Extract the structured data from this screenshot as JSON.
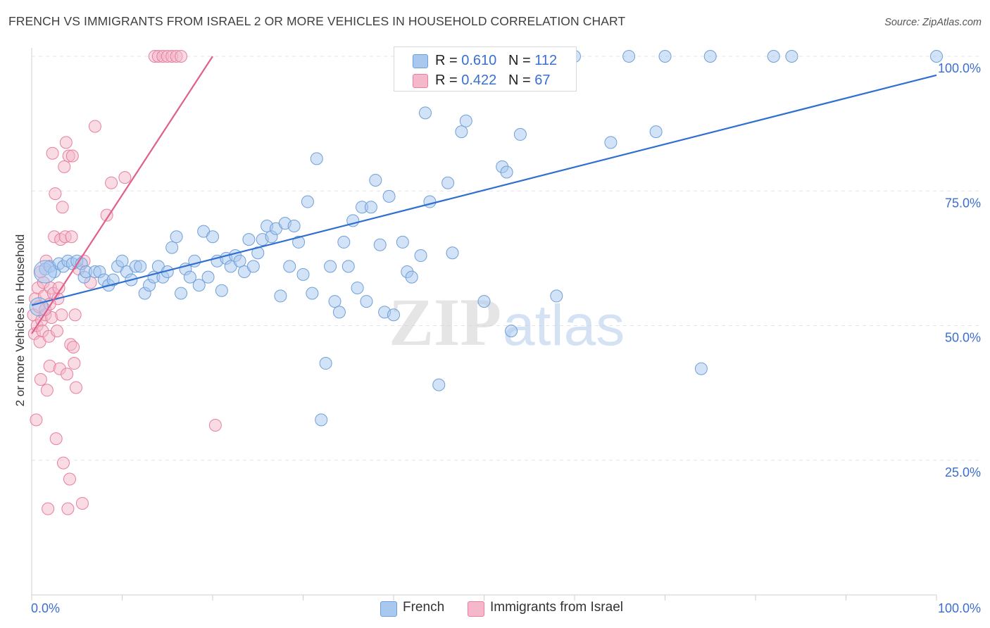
{
  "title": "FRENCH VS IMMIGRANTS FROM ISRAEL 2 OR MORE VEHICLES IN HOUSEHOLD CORRELATION CHART",
  "source": "Source: ZipAtlas.com",
  "watermark": {
    "zip": "ZIP",
    "atlas": "atlas"
  },
  "legend_top": {
    "rows": [
      {
        "r_label": "R = ",
        "r_value": "0.610",
        "n_label": "N = ",
        "n_value": "112",
        "color": "#a8c8f0"
      },
      {
        "r_label": "R = ",
        "r_value": "0.422",
        "n_label": "N = ",
        "n_value": "67",
        "color": "#f4b8ca"
      }
    ]
  },
  "colors": {
    "french_fill": "#a8c8f0",
    "french_stroke": "#6f9fd8",
    "french_line": "#2f6fd0",
    "israel_fill": "#f4b8ca",
    "israel_stroke": "#e87fa0",
    "israel_line": "#e0608a",
    "axis_label": "#3a6fd0",
    "grid": "#e3e3e3"
  },
  "chart_data": {
    "type": "scatter",
    "title": "FRENCH VS IMMIGRANTS FROM ISRAEL 2 OR MORE VEHICLES IN HOUSEHOLD CORRELATION CHART",
    "xlabel": "",
    "ylabel": "2 or more Vehicles in Household",
    "xlim": [
      0,
      100
    ],
    "ylim": [
      0,
      100
    ],
    "x_tick_labels": [
      "0.0%",
      "100.0%"
    ],
    "y_tick_labels": [
      "25.0%",
      "50.0%",
      "75.0%",
      "100.0%"
    ],
    "y_ticks": [
      25,
      50,
      75,
      100
    ],
    "grid": true,
    "legend_position": "bottom",
    "series": [
      {
        "name": "French",
        "r": 0.61,
        "n": 112,
        "trend": {
          "x": [
            0,
            100
          ],
          "y": [
            53.8,
            96.5
          ]
        },
        "points": [
          [
            1.5,
            60.5
          ],
          [
            2.0,
            61.0
          ],
          [
            2.5,
            60.0
          ],
          [
            3.0,
            61.5
          ],
          [
            3.5,
            61.0
          ],
          [
            4.0,
            62.0
          ],
          [
            4.5,
            61.5
          ],
          [
            5.0,
            62.0
          ],
          [
            5.5,
            61.5
          ],
          [
            5.8,
            59.0
          ],
          [
            6.0,
            60.0
          ],
          [
            7.0,
            60.0
          ],
          [
            7.5,
            60.0
          ],
          [
            8.0,
            58.5
          ],
          [
            8.5,
            57.5
          ],
          [
            9.0,
            58.5
          ],
          [
            9.5,
            61.0
          ],
          [
            10.0,
            62.0
          ],
          [
            10.5,
            60.0
          ],
          [
            11.0,
            58.5
          ],
          [
            11.5,
            61.0
          ],
          [
            12.0,
            61.0
          ],
          [
            12.5,
            56.0
          ],
          [
            13.0,
            57.5
          ],
          [
            13.5,
            59.0
          ],
          [
            14.0,
            61.0
          ],
          [
            14.5,
            59.0
          ],
          [
            15.0,
            60.0
          ],
          [
            15.5,
            64.5
          ],
          [
            16.0,
            66.5
          ],
          [
            16.5,
            56.0
          ],
          [
            17.0,
            60.5
          ],
          [
            17.5,
            59.0
          ],
          [
            18.0,
            62.0
          ],
          [
            18.5,
            57.5
          ],
          [
            19.0,
            67.5
          ],
          [
            19.5,
            59.0
          ],
          [
            20.0,
            66.5
          ],
          [
            20.5,
            62.0
          ],
          [
            21.0,
            56.5
          ],
          [
            21.5,
            62.5
          ],
          [
            22.0,
            61.0
          ],
          [
            22.5,
            63.0
          ],
          [
            23.0,
            62.0
          ],
          [
            23.5,
            60.0
          ],
          [
            24.0,
            66.0
          ],
          [
            24.5,
            61.0
          ],
          [
            25.0,
            63.5
          ],
          [
            25.5,
            66.0
          ],
          [
            26.0,
            68.5
          ],
          [
            26.5,
            66.5
          ],
          [
            27.0,
            68.0
          ],
          [
            27.5,
            55.5
          ],
          [
            28.0,
            69.0
          ],
          [
            28.5,
            61.0
          ],
          [
            29.0,
            68.5
          ],
          [
            29.5,
            65.5
          ],
          [
            30.0,
            59.5
          ],
          [
            30.5,
            73.0
          ],
          [
            31.0,
            56.0
          ],
          [
            31.5,
            81.0
          ],
          [
            32.0,
            32.5
          ],
          [
            32.5,
            43.0
          ],
          [
            33.0,
            61.0
          ],
          [
            33.5,
            54.5
          ],
          [
            34.0,
            52.5
          ],
          [
            34.5,
            65.5
          ],
          [
            35.0,
            61.0
          ],
          [
            35.5,
            69.5
          ],
          [
            36.0,
            57.0
          ],
          [
            36.5,
            72.0
          ],
          [
            37.0,
            54.5
          ],
          [
            37.5,
            72.0
          ],
          [
            38.0,
            77.0
          ],
          [
            38.5,
            65.0
          ],
          [
            39.0,
            52.5
          ],
          [
            39.5,
            74.0
          ],
          [
            40.0,
            52.0
          ],
          [
            41.0,
            65.5
          ],
          [
            41.5,
            60.0
          ],
          [
            42.0,
            59.0
          ],
          [
            43.0,
            63.0
          ],
          [
            43.5,
            89.5
          ],
          [
            44.0,
            73.0
          ],
          [
            45.0,
            39.0
          ],
          [
            46.0,
            76.5
          ],
          [
            46.5,
            63.5
          ],
          [
            47.5,
            86.0
          ],
          [
            48.0,
            88.0
          ],
          [
            50.0,
            54.5
          ],
          [
            50.5,
            100.0
          ],
          [
            52.0,
            79.5
          ],
          [
            52.5,
            78.5
          ],
          [
            53.0,
            49.0
          ],
          [
            54.0,
            85.5
          ],
          [
            55.0,
            100.0
          ],
          [
            56.0,
            100.0
          ],
          [
            58.0,
            55.5
          ],
          [
            60.0,
            100.0
          ],
          [
            64.0,
            84.0
          ],
          [
            66.0,
            100.0
          ],
          [
            69.0,
            86.0
          ],
          [
            70.0,
            100.0
          ],
          [
            74.0,
            42.0
          ],
          [
            75.0,
            100.0
          ],
          [
            82.0,
            100.0
          ],
          [
            84.0,
            100.0
          ],
          [
            100.0,
            100.0
          ]
        ]
      },
      {
        "name": "Immigrants from Israel",
        "r": 0.422,
        "n": 67,
        "trend": {
          "x": [
            0,
            20
          ],
          "y": [
            48.5,
            100
          ]
        },
        "points": [
          [
            0.2,
            52.0
          ],
          [
            0.3,
            48.5
          ],
          [
            0.4,
            55.0
          ],
          [
            0.5,
            32.5
          ],
          [
            0.6,
            50.0
          ],
          [
            0.7,
            57.0
          ],
          [
            0.8,
            53.5
          ],
          [
            0.9,
            47.0
          ],
          [
            1.0,
            40.0
          ],
          [
            1.1,
            51.0
          ],
          [
            1.2,
            49.0
          ],
          [
            1.3,
            58.0
          ],
          [
            1.4,
            55.5
          ],
          [
            1.5,
            52.0
          ],
          [
            1.6,
            62.0
          ],
          [
            1.7,
            38.0
          ],
          [
            1.8,
            16.0
          ],
          [
            1.9,
            48.0
          ],
          [
            2.0,
            42.5
          ],
          [
            2.1,
            57.0
          ],
          [
            2.2,
            51.5
          ],
          [
            2.3,
            82.0
          ],
          [
            2.4,
            56.0
          ],
          [
            2.5,
            66.5
          ],
          [
            2.6,
            74.5
          ],
          [
            2.7,
            29.0
          ],
          [
            2.8,
            49.0
          ],
          [
            2.9,
            55.0
          ],
          [
            3.0,
            57.0
          ],
          [
            3.1,
            42.0
          ],
          [
            3.2,
            66.0
          ],
          [
            3.3,
            52.0
          ],
          [
            3.4,
            72.0
          ],
          [
            3.5,
            24.5
          ],
          [
            3.6,
            79.5
          ],
          [
            3.7,
            66.5
          ],
          [
            3.8,
            84.0
          ],
          [
            3.9,
            41.0
          ],
          [
            4.0,
            16.0
          ],
          [
            4.1,
            81.5
          ],
          [
            4.2,
            21.5
          ],
          [
            4.3,
            46.5
          ],
          [
            4.4,
            66.5
          ],
          [
            4.5,
            81.5
          ],
          [
            4.6,
            46.0
          ],
          [
            4.7,
            43.0
          ],
          [
            4.8,
            52.0
          ],
          [
            4.9,
            38.5
          ],
          [
            5.2,
            60.5
          ],
          [
            5.6,
            17.0
          ],
          [
            5.8,
            62.0
          ],
          [
            6.5,
            58.0
          ],
          [
            7.0,
            87.0
          ],
          [
            8.3,
            70.5
          ],
          [
            8.8,
            76.5
          ],
          [
            10.3,
            77.5
          ],
          [
            13.6,
            100.0
          ],
          [
            14.0,
            100.0
          ],
          [
            14.5,
            100.0
          ],
          [
            15.0,
            100.0
          ],
          [
            15.5,
            100.0
          ],
          [
            16.0,
            100.0
          ],
          [
            16.5,
            100.0
          ],
          [
            20.3,
            31.5
          ],
          [
            1.0,
            60.0
          ],
          [
            1.5,
            53.0
          ],
          [
            2.0,
            54.0
          ]
        ]
      }
    ]
  },
  "bottom_legend": {
    "items": [
      {
        "label": "French"
      },
      {
        "label": "Immigrants from Israel"
      }
    ]
  }
}
